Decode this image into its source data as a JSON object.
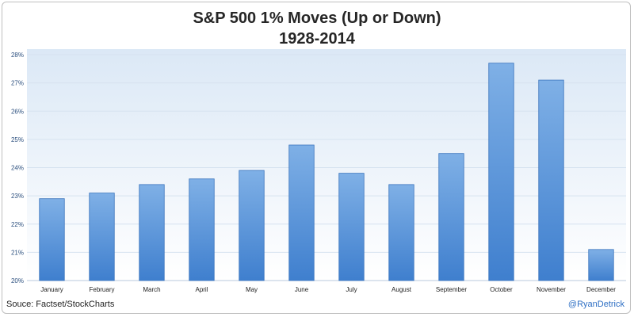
{
  "title": {
    "line1": "S&P 500 1% Moves (Up or Down)",
    "line2": "1928-2014"
  },
  "source": "Souce:  Factset/StockCharts",
  "credit": "@RyanDetrick",
  "colors": {
    "bar_top": "#7fb0e6",
    "bar_bottom": "#3f7fce",
    "bar_stroke": "#3a74bd",
    "grid": "#d6e2f0",
    "plot_bg_top": "#dbe8f6",
    "plot_bg_bottom": "#ffffff",
    "tick_label": "#2b4f7e"
  },
  "chart_data": {
    "type": "bar",
    "title": "S&P 500 1% Moves (Up or Down) 1928-2014",
    "categories": [
      "January",
      "February",
      "March",
      "April",
      "May",
      "June",
      "July",
      "August",
      "September",
      "October",
      "November",
      "December"
    ],
    "values": [
      22.9,
      23.1,
      23.4,
      23.6,
      23.9,
      24.8,
      23.8,
      23.4,
      24.5,
      27.7,
      27.1,
      21.1
    ],
    "ylim": [
      20,
      28
    ],
    "yticks": [
      "20%",
      "21%",
      "22%",
      "23%",
      "24%",
      "25%",
      "26%",
      "27%",
      "28%"
    ],
    "grid": true,
    "legend": "none"
  }
}
